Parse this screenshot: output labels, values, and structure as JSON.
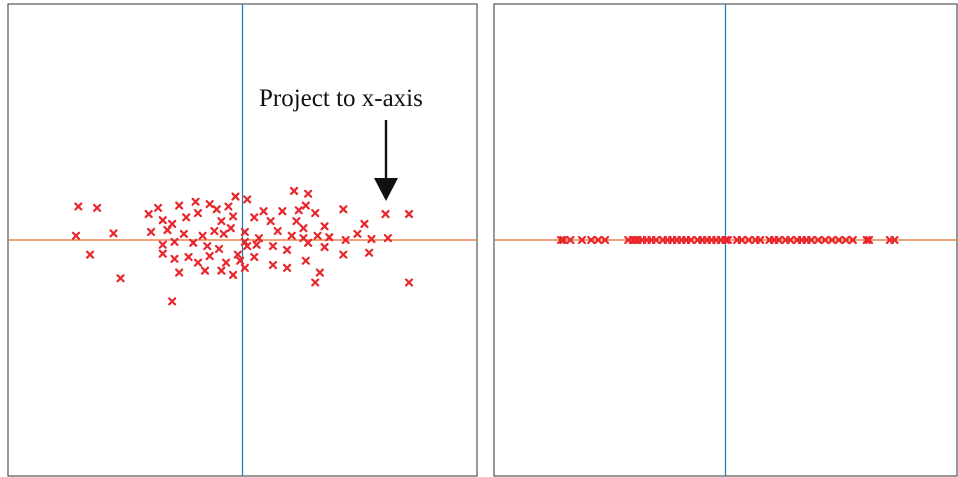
{
  "colors": {
    "points": "#e8262c",
    "horizontal_axis": "#ea6a2a",
    "vertical_axis": "#1f77b4",
    "frame": "#333333",
    "arrow": "#111111"
  },
  "annotation": {
    "text": "Project to x-axis",
    "icon": "down-arrow-icon"
  },
  "chart_data": [
    {
      "type": "scatter",
      "title": "",
      "xlabel": "",
      "ylabel": "",
      "xlim": [
        -5,
        5
      ],
      "ylim": [
        -5,
        5
      ],
      "grid": false,
      "axes_lines": [
        "x=0",
        "y=0"
      ],
      "series": [
        {
          "marker": "x",
          "points": [
            [
              -3.5,
              0.71
            ],
            [
              -3.1,
              0.68
            ],
            [
              -3.55,
              0.09
            ],
            [
              -2.75,
              0.14
            ],
            [
              -3.25,
              -0.31
            ],
            [
              -2.6,
              -0.81
            ],
            [
              -1.8,
              0.68
            ],
            [
              -1.35,
              0.73
            ],
            [
              -1.0,
              0.81
            ],
            [
              -0.7,
              0.76
            ],
            [
              -0.55,
              0.65
            ],
            [
              -0.3,
              0.71
            ],
            [
              -0.15,
              0.92
            ],
            [
              0.1,
              0.86
            ],
            [
              1.1,
              1.04
            ],
            [
              1.4,
              0.98
            ],
            [
              2.15,
              0.65
            ],
            [
              3.05,
              0.55
            ],
            [
              -2.0,
              0.55
            ],
            [
              -1.7,
              0.42
            ],
            [
              -1.5,
              0.34
            ],
            [
              -1.2,
              0.48
            ],
            [
              -0.95,
              0.57
            ],
            [
              -0.45,
              0.4
            ],
            [
              -0.2,
              0.5
            ],
            [
              0.45,
              0.61
            ],
            [
              0.6,
              0.4
            ],
            [
              0.85,
              0.61
            ],
            [
              1.15,
              0.4
            ],
            [
              1.3,
              0.25
            ],
            [
              1.55,
              0.57
            ],
            [
              1.75,
              0.29
            ],
            [
              2.6,
              0.34
            ],
            [
              -1.95,
              0.17
            ],
            [
              -1.6,
              0.21
            ],
            [
              -1.25,
              0.13
            ],
            [
              -0.85,
              0.09
            ],
            [
              -0.6,
              0.19
            ],
            [
              -0.4,
              0.13
            ],
            [
              -0.25,
              0.25
            ],
            [
              0.05,
              0.17
            ],
            [
              0.35,
              0.04
            ],
            [
              0.75,
              0.19
            ],
            [
              1.05,
              0.09
            ],
            [
              1.3,
              0.04
            ],
            [
              1.6,
              0.09
            ],
            [
              1.85,
              0.06
            ],
            [
              2.2,
              0.0
            ],
            [
              2.45,
              0.13
            ],
            [
              2.75,
              0.02
            ],
            [
              3.1,
              0.04
            ],
            [
              -1.7,
              -0.1
            ],
            [
              -1.45,
              -0.04
            ],
            [
              -1.05,
              -0.06
            ],
            [
              -0.75,
              -0.13
            ],
            [
              -0.5,
              -0.19
            ],
            [
              0.05,
              -0.04
            ],
            [
              0.3,
              -0.1
            ],
            [
              0.65,
              -0.13
            ],
            [
              0.95,
              -0.21
            ],
            [
              1.4,
              -0.06
            ],
            [
              1.75,
              -0.15
            ],
            [
              2.15,
              -0.31
            ],
            [
              2.7,
              -0.27
            ],
            [
              -1.7,
              -0.29
            ],
            [
              -1.45,
              -0.4
            ],
            [
              -1.15,
              -0.36
            ],
            [
              -0.95,
              -0.48
            ],
            [
              -0.7,
              -0.34
            ],
            [
              -0.35,
              -0.48
            ],
            [
              -0.05,
              -0.44
            ],
            [
              0.25,
              -0.36
            ],
            [
              0.65,
              -0.53
            ],
            [
              0.95,
              -0.59
            ],
            [
              1.35,
              -0.44
            ],
            [
              1.65,
              -0.69
            ],
            [
              -1.35,
              -0.69
            ],
            [
              -0.8,
              -0.65
            ],
            [
              -0.45,
              -0.65
            ],
            [
              -0.2,
              -0.74
            ],
            [
              0.05,
              -0.59
            ],
            [
              -1.5,
              -1.3
            ],
            [
              1.55,
              -0.9
            ],
            [
              3.55,
              0.55
            ],
            [
              3.55,
              -0.9
            ],
            [
              1.35,
              0.73
            ],
            [
              1.2,
              0.63
            ],
            [
              0.25,
              0.48
            ],
            [
              -0.1,
              -0.31
            ],
            [
              0.1,
              -0.13
            ]
          ]
        }
      ]
    },
    {
      "type": "scatter",
      "title": "",
      "xlabel": "",
      "ylabel": "",
      "xlim": [
        -5,
        5
      ],
      "ylim": [
        -5,
        5
      ],
      "grid": false,
      "axes_lines": [
        "x=0",
        "y=0"
      ],
      "series": [
        {
          "marker": "x",
          "points": [
            [
              -3.55,
              0
            ],
            [
              -3.5,
              0
            ],
            [
              -3.35,
              0
            ],
            [
              -3.1,
              0
            ],
            [
              -2.9,
              0
            ],
            [
              -2.75,
              0
            ],
            [
              -2.6,
              0
            ],
            [
              -2.1,
              0
            ],
            [
              -2.0,
              0
            ],
            [
              -1.95,
              0
            ],
            [
              -1.9,
              0
            ],
            [
              -1.8,
              0
            ],
            [
              -1.7,
              0
            ],
            [
              -1.6,
              0
            ],
            [
              -1.5,
              0
            ],
            [
              -1.35,
              0
            ],
            [
              -1.25,
              0
            ],
            [
              -1.15,
              0
            ],
            [
              -1.05,
              0
            ],
            [
              -0.95,
              0
            ],
            [
              -0.85,
              0
            ],
            [
              -0.75,
              0
            ],
            [
              -0.6,
              0
            ],
            [
              -0.5,
              0
            ],
            [
              -0.4,
              0
            ],
            [
              -0.3,
              0
            ],
            [
              -0.2,
              0
            ],
            [
              -0.1,
              0
            ],
            [
              0.0,
              0
            ],
            [
              0.05,
              0
            ],
            [
              0.25,
              0
            ],
            [
              0.35,
              0
            ],
            [
              0.5,
              0
            ],
            [
              0.65,
              0
            ],
            [
              0.75,
              0
            ],
            [
              0.95,
              0
            ],
            [
              1.05,
              0
            ],
            [
              1.15,
              0
            ],
            [
              1.3,
              0
            ],
            [
              1.4,
              0
            ],
            [
              1.55,
              0
            ],
            [
              1.65,
              0
            ],
            [
              1.75,
              0
            ],
            [
              1.85,
              0
            ],
            [
              2.0,
              0
            ],
            [
              2.15,
              0
            ],
            [
              2.3,
              0
            ],
            [
              2.45,
              0
            ],
            [
              2.6,
              0
            ],
            [
              2.75,
              0
            ],
            [
              3.05,
              0
            ],
            [
              3.1,
              0
            ],
            [
              3.55,
              0
            ],
            [
              3.65,
              0
            ]
          ]
        }
      ]
    }
  ]
}
